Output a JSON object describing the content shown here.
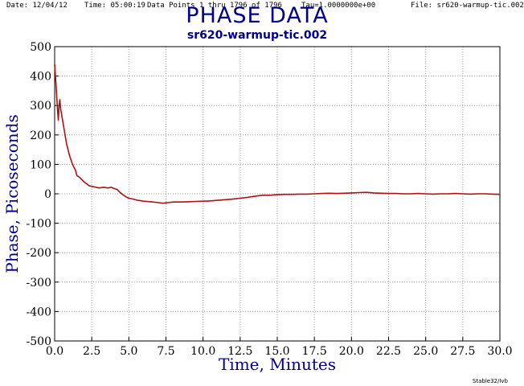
{
  "header": {
    "date": "Date: 12/04/12",
    "time": "Time: 05:00:19",
    "points": "Data Points 1 thru 1796 of 1796",
    "tau": "Tau=1.0000000e+00",
    "file": "File: sr620-warmup-tic.002"
  },
  "footer": "Stable32/Ivb",
  "colors": {
    "line": "#b01010",
    "title": "#00008b",
    "grid": "#9a9a9a"
  },
  "chart_data": {
    "type": "line",
    "title": "PHASE DATA",
    "subtitle": "sr620-warmup-tic.002",
    "xlabel": "Time, Minutes",
    "ylabel": "Phase, Picoseconds",
    "xlim": [
      0,
      30
    ],
    "ylim": [
      -500,
      500
    ],
    "xticks": [
      "0.0",
      "2.5",
      "5.0",
      "7.5",
      "10.0",
      "12.5",
      "15.0",
      "17.5",
      "20.0",
      "22.5",
      "25.0",
      "27.5",
      "30.0"
    ],
    "yticks": [
      "500",
      "400",
      "300",
      "200",
      "100",
      "0",
      "-100",
      "-200",
      "-300",
      "-400",
      "-500"
    ],
    "grid": true,
    "series": [
      {
        "x": [
          0.0,
          0.08,
          0.15,
          0.2,
          0.25,
          0.3,
          0.35,
          0.4,
          0.5,
          0.6,
          0.7,
          0.8,
          1.0,
          1.2,
          1.4,
          1.5,
          1.7,
          2.0,
          2.3,
          2.5,
          2.8,
          3.0,
          3.3,
          3.6,
          3.8,
          4.0,
          4.2,
          4.4,
          4.6,
          4.8,
          5.0,
          5.3,
          5.6,
          6.0,
          6.5,
          7.0,
          7.3,
          7.6,
          8.0,
          8.5,
          9.0,
          9.5,
          10.0,
          10.5,
          11.0,
          11.5,
          12.0,
          12.5,
          13.0,
          13.5,
          14.0,
          14.5,
          15.0,
          15.5,
          16.0,
          16.5,
          17.0,
          17.5,
          18.0,
          18.5,
          19.0,
          19.5,
          20.0,
          20.5,
          21.0,
          21.5,
          22.0,
          22.5,
          23.0,
          23.5,
          24.0,
          24.5,
          25.0,
          25.5,
          26.0,
          26.5,
          27.0,
          27.5,
          28.0,
          28.5,
          29.0,
          29.5,
          30.0
        ],
        "y": [
          440,
          380,
          320,
          280,
          250,
          300,
          320,
          290,
          260,
          230,
          200,
          170,
          130,
          100,
          80,
          62,
          55,
          40,
          28,
          25,
          22,
          20,
          22,
          20,
          22,
          18,
          15,
          5,
          -3,
          -10,
          -15,
          -18,
          -22,
          -25,
          -27,
          -30,
          -32,
          -30,
          -28,
          -28,
          -27,
          -26,
          -25,
          -24,
          -22,
          -20,
          -18,
          -15,
          -12,
          -8,
          -5,
          -5,
          -3,
          -2,
          -2,
          -1,
          -1,
          0,
          1,
          2,
          1,
          2,
          3,
          4,
          5,
          3,
          2,
          1,
          1,
          0,
          0,
          1,
          0,
          -1,
          0,
          0,
          1,
          0,
          -1,
          0,
          0,
          -1,
          -2
        ]
      }
    ]
  }
}
